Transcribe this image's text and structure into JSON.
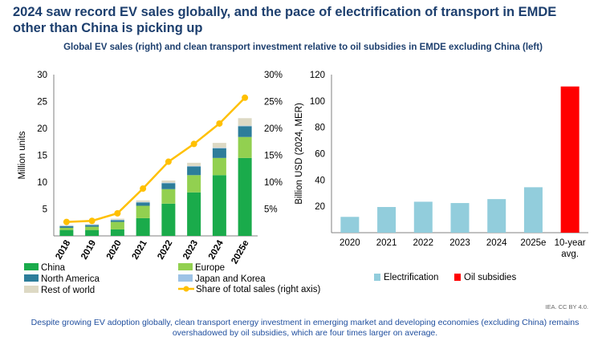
{
  "title": "2024 saw record EV sales globally, and the pace of electrification of transport in EMDE other than China is picking up",
  "subtitle": "Global EV sales (right) and clean transport investment relative to oil subsidies in EMDE excluding China (left)",
  "credit": "IEA. CC BY 4.0.",
  "footnote": "Despite growing EV adoption globally, clean transport energy investment in emerging market and developing economies (excluding China) remains overshadowed by oil subsidies, which are four times larger on average.",
  "chart_data": [
    {
      "type": "bar",
      "stacked": true,
      "ylabel": "Million units",
      "ylim": [
        0,
        30
      ],
      "yticks": [
        5,
        10,
        15,
        20,
        25,
        30
      ],
      "y2lim": [
        0,
        0.3
      ],
      "y2ticks": [
        "5%",
        "10%",
        "15%",
        "20%",
        "25%",
        "30%"
      ],
      "categories": [
        "2018",
        "2019",
        "2020",
        "2021",
        "2022",
        "2023",
        "2024",
        "2025e"
      ],
      "series": [
        {
          "name": "China",
          "color": "#1aab4b",
          "values": [
            1.1,
            1.1,
            1.2,
            3.3,
            6.0,
            8.1,
            11.3,
            14.5
          ]
        },
        {
          "name": "Europe",
          "color": "#92d050",
          "values": [
            0.4,
            0.6,
            1.4,
            2.3,
            2.7,
            3.2,
            3.2,
            3.9
          ]
        },
        {
          "name": "North America",
          "color": "#2d7d9a",
          "values": [
            0.3,
            0.3,
            0.3,
            0.6,
            1.1,
            1.6,
            1.8,
            2.0
          ]
        },
        {
          "name": "Japan and Korea",
          "color": "#9dc3e6",
          "values": [
            0.1,
            0.1,
            0.1,
            0.1,
            0.1,
            0.1,
            0.1,
            0.1
          ]
        },
        {
          "name": "Rest of world",
          "color": "#ddd9c4",
          "values": [
            0.1,
            0.1,
            0.2,
            0.3,
            0.4,
            0.6,
            0.9,
            1.4
          ]
        }
      ],
      "line": {
        "name": "Share of total sales (right axis)",
        "color": "#ffc000",
        "values": [
          0.026,
          0.028,
          0.042,
          0.088,
          0.138,
          0.171,
          0.209,
          0.257
        ]
      },
      "legend": "bottom"
    },
    {
      "type": "bar",
      "ylabel": "Billion USD (2024, MER)",
      "ylim": [
        0,
        120
      ],
      "yticks": [
        20,
        40,
        60,
        80,
        100,
        120
      ],
      "categories": [
        "2020",
        "2021",
        "2022",
        "2023",
        "2024",
        "2025e",
        "10-year avg."
      ],
      "series": [
        {
          "name": "Electrification",
          "color": "#92cddc",
          "values": [
            12,
            19.5,
            23.5,
            22.5,
            25.5,
            34.5,
            null
          ]
        },
        {
          "name": "Oil subsidies",
          "color": "#ff0000",
          "values": [
            null,
            null,
            null,
            null,
            null,
            null,
            111
          ]
        }
      ],
      "legend": "bottom"
    }
  ]
}
